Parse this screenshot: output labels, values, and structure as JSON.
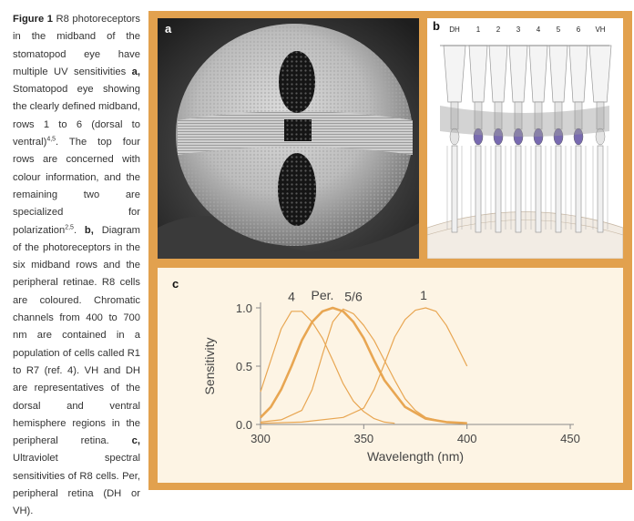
{
  "caption": {
    "fig_label": "Figure 1",
    "s1": " R8 photoreceptors in the midband of the stomatopod eye have multiple UV sensitivities ",
    "a_label": "a,",
    "s2": " Stomatopod eye showing the clearly defined midband, rows 1 to 6 (dorsal to ventral)",
    "ref1": "4,5",
    "s3": ". The top four rows are concerned with colour information, and the remaining two are specialized for polarization",
    "ref2": "2,5",
    "s4": ". ",
    "b_label": "b,",
    "s5": " Diagram of the photoreceptors in the six midband rows and the peripheral retinae. R8 cells are coloured. Chromatic channels from 400 to 700 nm are contained in a population of cells called R1 to R7 (ref. 4). VH and DH are representatives of the dorsal and ventral hemisphere regions in the peripheral retina. ",
    "c_label": "c,",
    "s6": " Ultraviolet spectral sensitivities of R8 cells. Per, peripheral retina (DH or VH)."
  },
  "panels": {
    "a": {
      "label": "a"
    },
    "b": {
      "label": "b",
      "columns": [
        "DH",
        "1",
        "2",
        "3",
        "4",
        "5",
        "6",
        "VH"
      ]
    },
    "c": {
      "label": "c"
    }
  },
  "colors": {
    "frame": "#e2a14e",
    "curve": "#e8a652",
    "panel_c_bg": "#fdf4e4",
    "r8_purple": "#6a5aa8"
  },
  "chart_data": {
    "type": "line",
    "xlabel": "Wavelength (nm)",
    "ylabel": "Sensitivity",
    "xlim": [
      300,
      450
    ],
    "ylim": [
      0,
      1.0
    ],
    "xticks": [
      "300",
      "350",
      "400",
      "450"
    ],
    "yticks": [
      "0.0",
      "0.5",
      "1.0"
    ],
    "series": [
      {
        "name": "4",
        "x": [
          300,
          305,
          310,
          315,
          320,
          325,
          330,
          335,
          340,
          345,
          350,
          355,
          360,
          365
        ],
        "y": [
          0.28,
          0.55,
          0.82,
          0.97,
          0.97,
          0.88,
          0.74,
          0.55,
          0.35,
          0.2,
          0.11,
          0.05,
          0.02,
          0.01
        ]
      },
      {
        "name": "Per.",
        "x": [
          300,
          305,
          310,
          315,
          320,
          325,
          330,
          335,
          340,
          345,
          350,
          355,
          360,
          370,
          380,
          390,
          400
        ],
        "y": [
          0.06,
          0.15,
          0.3,
          0.5,
          0.72,
          0.88,
          0.97,
          1.0,
          0.97,
          0.88,
          0.74,
          0.55,
          0.38,
          0.15,
          0.05,
          0.02,
          0.01
        ]
      },
      {
        "name": "5/6",
        "x": [
          300,
          310,
          320,
          325,
          330,
          335,
          340,
          345,
          350,
          355,
          360,
          365,
          370,
          375,
          380,
          390,
          400
        ],
        "y": [
          0.02,
          0.04,
          0.12,
          0.3,
          0.6,
          0.88,
          0.99,
          0.95,
          0.85,
          0.72,
          0.55,
          0.38,
          0.22,
          0.12,
          0.06,
          0.02,
          0.01
        ]
      },
      {
        "name": "1",
        "x": [
          300,
          320,
          340,
          350,
          355,
          360,
          365,
          370,
          375,
          380,
          385,
          390,
          395,
          400
        ],
        "y": [
          0.01,
          0.02,
          0.06,
          0.14,
          0.3,
          0.52,
          0.75,
          0.9,
          0.98,
          1.0,
          0.97,
          0.85,
          0.68,
          0.5
        ]
      }
    ],
    "legend_labels": [
      {
        "text": "4",
        "x": 315,
        "y": 1.06
      },
      {
        "text": "Per.",
        "x": 330,
        "y": 1.07
      },
      {
        "text": "5/6",
        "x": 345,
        "y": 1.06
      },
      {
        "text": "1",
        "x": 379,
        "y": 1.07
      }
    ]
  }
}
